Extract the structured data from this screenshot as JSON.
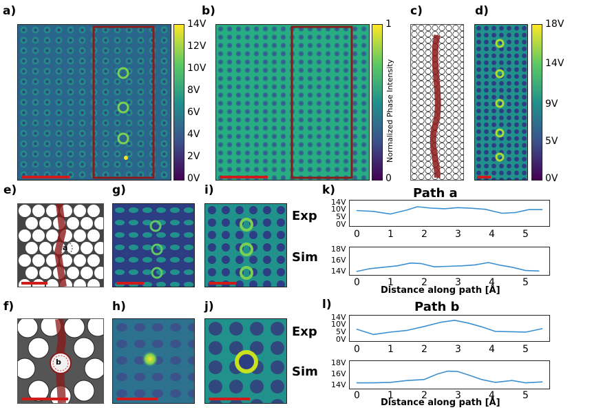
{
  "labels": {
    "a": "a)",
    "b": "b)",
    "c": "c)",
    "d": "d)",
    "e": "e)",
    "f": "f)",
    "g": "g)",
    "h": "h)",
    "i": "i)",
    "j": "j)",
    "k": "k)",
    "l": "l)"
  },
  "colorbar_a": {
    "ticks": [
      "14V",
      "12V",
      "10V",
      "8V",
      "6V",
      "4V",
      "2V",
      "0V"
    ]
  },
  "colorbar_b": {
    "ticks": [
      "1",
      "0"
    ],
    "label": "Normalized Phase Intensity"
  },
  "colorbar_d": {
    "ticks": [
      "18V",
      "14V",
      "9V",
      "5V",
      "0V"
    ]
  },
  "markers": {
    "a": "a",
    "b": "b"
  },
  "row_labels": {
    "exp": "Exp",
    "sim": "Sim"
  },
  "colors": {
    "viridis_dark": "#440154",
    "viridis_mid": "#21918c",
    "viridis_yellow": "#fde725",
    "highlight_red": "#8b1a1a",
    "scale_bar": "#d11a1a",
    "line_blue": "#3a8fd0"
  },
  "chart_data": [
    {
      "type": "line",
      "title": "Path a",
      "row": "Exp",
      "xlabel": "",
      "ylabel": "",
      "xlim": [
        -0.2,
        5.7
      ],
      "ylim": [
        0,
        14
      ],
      "xticks": [
        "0",
        "1",
        "2",
        "3",
        "4",
        "5"
      ],
      "yticks": [
        "14V",
        "10V",
        "5V",
        "0V"
      ],
      "x": [
        0,
        0.5,
        1.0,
        1.5,
        1.8,
        2.2,
        2.6,
        3.0,
        3.4,
        3.8,
        4.3,
        4.7,
        5.1,
        5.5
      ],
      "y": [
        8.8,
        8.2,
        6.5,
        9.2,
        11.3,
        10.4,
        10.0,
        10.7,
        10.3,
        9.6,
        7.0,
        7.5,
        9.4,
        9.4
      ]
    },
    {
      "type": "line",
      "title": "",
      "row": "Sim",
      "xlabel": "Distance along path [Å]",
      "ylabel": "",
      "xlim": [
        -0.2,
        5.7
      ],
      "ylim": [
        13.5,
        18.5
      ],
      "xticks": [
        "0",
        "1",
        "2",
        "3",
        "4",
        "5"
      ],
      "yticks": [
        "18V",
        "16V",
        "14V"
      ],
      "x": [
        0,
        0.4,
        0.8,
        1.2,
        1.6,
        1.9,
        2.3,
        2.7,
        3.1,
        3.5,
        3.9,
        4.2,
        4.6,
        5.0,
        5.4
      ],
      "y": [
        13.8,
        14.4,
        14.7,
        15.0,
        15.6,
        15.5,
        14.8,
        14.9,
        15.0,
        15.2,
        15.7,
        15.2,
        14.7,
        14.0,
        13.9
      ]
    },
    {
      "type": "line",
      "title": "Path b",
      "row": "Exp",
      "xlabel": "",
      "ylabel": "",
      "xlim": [
        -0.2,
        5.7
      ],
      "ylim": [
        0,
        14
      ],
      "xticks": [
        "0",
        "1",
        "2",
        "3",
        "4",
        "5"
      ],
      "yticks": [
        "14V",
        "10V",
        "5V",
        "0V"
      ],
      "x": [
        0,
        0.5,
        1.0,
        1.5,
        2.0,
        2.5,
        2.9,
        3.3,
        3.7,
        4.1,
        4.6,
        5.0,
        5.5
      ],
      "y": [
        6.5,
        3.0,
        4.5,
        5.7,
        8.2,
        11.0,
        12.3,
        10.5,
        8.0,
        5.0,
        4.8,
        4.5,
        6.8
      ]
    },
    {
      "type": "line",
      "title": "",
      "row": "Sim",
      "xlabel": "Distance along path [Å]",
      "ylabel": "",
      "xlim": [
        -0.2,
        5.7
      ],
      "ylim": [
        13.5,
        18.5
      ],
      "xticks": [
        "0",
        "1",
        "2",
        "3",
        "4",
        "5"
      ],
      "yticks": [
        "18V",
        "16V",
        "14V"
      ],
      "x": [
        0,
        0.5,
        1.0,
        1.5,
        2.0,
        2.4,
        2.7,
        3.0,
        3.3,
        3.7,
        4.1,
        4.6,
        5.0,
        5.5
      ],
      "y": [
        14.3,
        14.3,
        14.4,
        14.8,
        15.0,
        16.2,
        16.8,
        16.7,
        16.0,
        15.0,
        14.4,
        14.8,
        14.3,
        14.5
      ]
    }
  ]
}
